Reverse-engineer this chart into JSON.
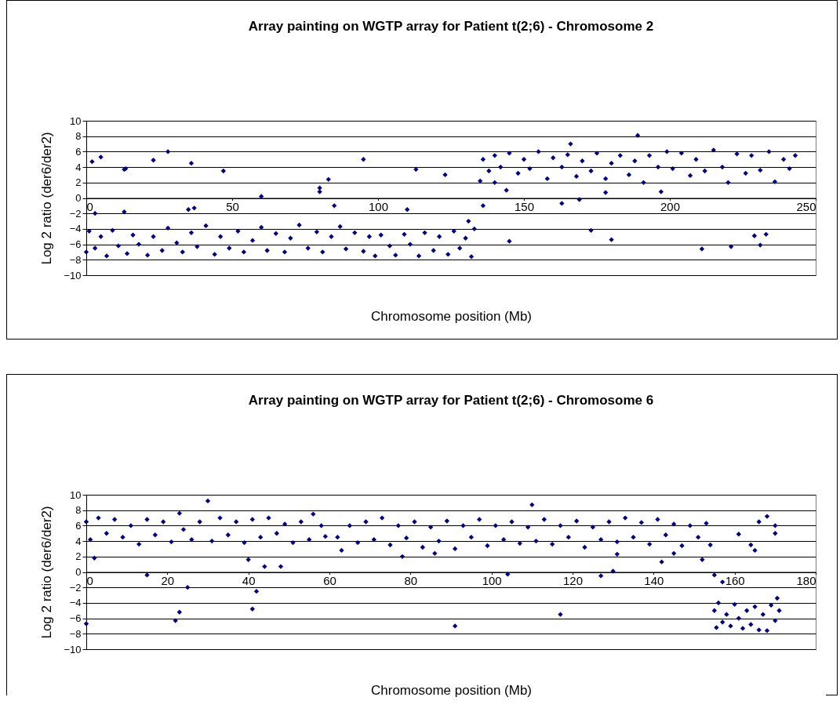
{
  "chart_data": [
    {
      "type": "scatter",
      "title": "Array painting on WGTP array for Patient t(2;6) - Chromosome 2",
      "xlabel": "Chromosome position (Mb)",
      "ylabel": "Log 2 ratio (der6/der2)",
      "xlim": [
        0,
        250
      ],
      "xticks": [
        0,
        50,
        100,
        150,
        200,
        250
      ],
      "ylim": [
        -10,
        10
      ],
      "yticks": [
        -10,
        -8,
        -6,
        -4,
        -2,
        0,
        2,
        4,
        6,
        8,
        10
      ],
      "grid": "y",
      "marker": "diamond",
      "series": [
        {
          "color": "#000080",
          "x": [
            0,
            1,
            3,
            5,
            7,
            9,
            11,
            14,
            16,
            18,
            21,
            23,
            26,
            28,
            31,
            33,
            36,
            38,
            41,
            44,
            46,
            49,
            52,
            54,
            57,
            60,
            62,
            65,
            68,
            70,
            73,
            76,
            79,
            81,
            84,
            87,
            89,
            92,
            95,
            97,
            99,
            101,
            104,
            106,
            109,
            111,
            114,
            116,
            119,
            121,
            124,
            126,
            128,
            130,
            132,
            133,
            135,
            136,
            138,
            140,
            142,
            145,
            148,
            150,
            152,
            155,
            158,
            160,
            163,
            165,
            168,
            170,
            173,
            175,
            178,
            180,
            183,
            186,
            188,
            191,
            193,
            196,
            199,
            201,
            204,
            207,
            209,
            212,
            215,
            218,
            220,
            223,
            226,
            228,
            231,
            234,
            236,
            239,
            241,
            243,
            2,
            5,
            3,
            13,
            13.5,
            13,
            23,
            28,
            36,
            35,
            37,
            47,
            60,
            80,
            80,
            83,
            85,
            95,
            110,
            113,
            123,
            136,
            131,
            140,
            145,
            144,
            163,
            166,
            169,
            173,
            180,
            189,
            211,
            221,
            229,
            233,
            231,
            178,
            197
          ],
          "values": [
            -7,
            -4.3,
            -6.5,
            -5,
            -7.5,
            -4.2,
            -6.2,
            -7.2,
            -4.8,
            -6,
            -7.4,
            -5,
            -6.8,
            -3.9,
            -5.8,
            -7,
            -4.5,
            -6.3,
            -3.6,
            -7.3,
            -5,
            -6.5,
            -4.3,
            -7,
            -5.5,
            -3.8,
            -6.8,
            -4.6,
            -7,
            -5.2,
            -3.5,
            -6.5,
            -4.4,
            -7,
            -5,
            -3.7,
            -6.6,
            -4.5,
            -6.9,
            -5,
            -7.5,
            -4.8,
            -6.2,
            -7.4,
            -4.7,
            -6,
            -7.5,
            -4.5,
            -6.8,
            -5,
            -7.3,
            -4.3,
            -6.5,
            -5.2,
            -7.6,
            -4,
            2.2,
            5,
            3.5,
            5.5,
            4,
            5.8,
            3.2,
            5,
            3.8,
            6,
            2.5,
            5.2,
            4,
            5.6,
            2.8,
            4.8,
            3.5,
            5.8,
            2.5,
            4.5,
            5.5,
            3,
            4.8,
            2,
            5.5,
            4,
            6,
            3.8,
            5.8,
            2.9,
            5,
            3.5,
            6.2,
            4,
            2,
            5.7,
            3.2,
            5.5,
            3.6,
            6,
            2.1,
            5,
            3.8,
            5.5,
            4.7,
            5.3,
            -2,
            3.7,
            3.8,
            -1.8,
            4.9,
            6,
            4.5,
            -1.5,
            -1.3,
            3.5,
            0.2,
            1.3,
            0.8,
            2.4,
            -1,
            5,
            -1.5,
            3.7,
            3,
            -1,
            -3,
            2,
            -5.6,
            1,
            -0.7,
            7,
            -0.2,
            -4.2,
            -5.4,
            8.1,
            -6.6,
            -6.3,
            -4.9,
            -4.7,
            -6.1,
            0.7,
            0.8
          ]
        }
      ]
    },
    {
      "type": "scatter",
      "title": "Array painting on WGTP array for Patient t(2;6) - Chromosome 6",
      "xlabel": "Chromosome position (Mb)",
      "ylabel": "Log 2 ratio (der6/der2)",
      "xlim": [
        0,
        180
      ],
      "xticks": [
        0,
        20,
        40,
        60,
        80,
        100,
        120,
        140,
        160,
        180
      ],
      "ylim": [
        -10,
        10
      ],
      "yticks": [
        -10,
        -8,
        -6,
        -4,
        -2,
        0,
        2,
        4,
        6,
        8,
        10
      ],
      "grid": "y",
      "marker": "diamond",
      "series": [
        {
          "color": "#000080",
          "x": [
            0,
            1,
            3,
            5,
            7,
            9,
            11,
            13,
            15,
            17,
            19,
            21,
            24,
            26,
            28,
            31,
            33,
            35,
            37,
            39,
            41,
            43,
            45,
            47,
            49,
            51,
            53,
            55,
            58,
            59,
            62,
            63,
            65,
            67,
            69,
            71,
            73,
            75,
            77,
            79,
            81,
            83,
            85,
            87,
            89,
            91,
            93,
            95,
            97,
            99,
            101,
            103,
            105,
            107,
            109,
            111,
            113,
            115,
            117,
            119,
            121,
            123,
            125,
            127,
            129,
            131,
            133,
            135,
            137,
            139,
            141,
            143,
            145,
            147,
            149,
            151,
            153,
            154,
            155,
            155.5,
            156,
            157,
            158,
            159,
            160,
            161,
            162,
            163,
            164,
            165,
            166,
            167,
            168,
            169,
            170,
            170.5,
            171,
            0,
            2,
            15,
            23,
            23,
            22,
            25,
            30,
            40,
            41,
            42,
            44,
            48,
            56,
            91,
            104,
            110,
            117,
            127,
            130,
            142,
            152,
            155,
            157,
            161,
            164,
            165,
            166,
            168,
            170,
            170,
            145,
            78,
            86,
            131
          ],
          "values": [
            6.5,
            4.2,
            7,
            5,
            6.8,
            4.5,
            6,
            3.6,
            6.8,
            4.8,
            6.5,
            3.9,
            5.5,
            4.2,
            6.5,
            4,
            7,
            4.8,
            6.5,
            3.8,
            6.8,
            4.5,
            7,
            5,
            6.2,
            3.8,
            6.5,
            4.2,
            6,
            4.6,
            4.5,
            2.8,
            6,
            3.8,
            6.5,
            4.2,
            7,
            3.5,
            6,
            4.4,
            6.5,
            3.2,
            5.8,
            4,
            6.6,
            3,
            6,
            4.5,
            6.8,
            3.4,
            6,
            4.2,
            6.5,
            3.7,
            5.8,
            4,
            6.8,
            3.6,
            6,
            4.5,
            6.6,
            3.2,
            5.8,
            4.2,
            6.5,
            3.9,
            7,
            4.5,
            6.4,
            3.6,
            6.8,
            4.8,
            6.2,
            3.4,
            6,
            4.5,
            6.3,
            3.5,
            -5,
            -7.2,
            -4,
            -6.5,
            -5.5,
            -7,
            -4.2,
            -6,
            -7.3,
            -5,
            -6.8,
            -4.5,
            -7.5,
            -5.5,
            -7.6,
            -4.3,
            -6.3,
            -3.4,
            -5,
            -6.7,
            1.8,
            -0.4,
            7.6,
            -5.2,
            -6.3,
            -2,
            9.2,
            1.6,
            -4.8,
            -2.5,
            0.7,
            0.7,
            7.5,
            -7,
            -0.3,
            8.7,
            -5.5,
            -0.5,
            0.1,
            1.3,
            1.6,
            -0.4,
            -1.3,
            4.9,
            3.5,
            2.8,
            6.5,
            7.2,
            5,
            6,
            2.4,
            2,
            2.4,
            2.3
          ]
        }
      ]
    }
  ]
}
